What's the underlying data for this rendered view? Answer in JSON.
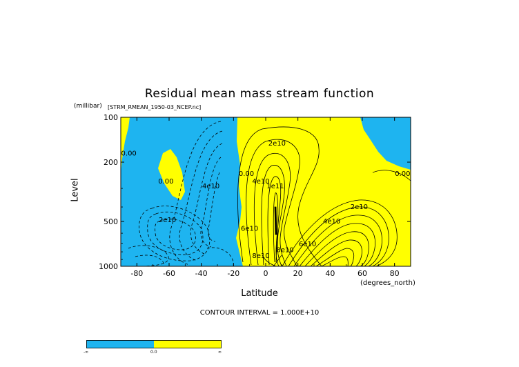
{
  "chart_data": {
    "type": "heatmap",
    "title": "Residual mean mass stream function",
    "subtitle": "[STRM_RMEAN_1950-03_NCEP.nc]",
    "ylabel": "Level",
    "yunits": "(millibar)",
    "xlabel": "Latitude",
    "xunits": "(degrees_north)",
    "y_scale": "log",
    "xlim": [
      -90,
      90
    ],
    "ylim": [
      1000,
      100
    ],
    "x_ticks": [
      "-80",
      "-60",
      "-40",
      "-20",
      "0",
      "20",
      "40",
      "60",
      "80"
    ],
    "x_tick_values": [
      -80,
      -60,
      -40,
      -20,
      0,
      20,
      40,
      60,
      80
    ],
    "y_ticks": [
      "100",
      "200",
      "500",
      "1000"
    ],
    "y_tick_values": [
      100,
      200,
      500,
      1000
    ],
    "contour_interval_text": "CONTOUR INTERVAL = 1.000E+10",
    "fill_colors": {
      "negative": "#1EB4F0",
      "positive": "#FFFF00"
    },
    "contour_labels": [
      {
        "text": "0.00",
        "lon": -85,
        "p": 175
      },
      {
        "text": "0.00",
        "lon": -62,
        "p": 270
      },
      {
        "text": "4e10",
        "lon": -34,
        "p": 290
      },
      {
        "text": "2e10",
        "lon": -61,
        "p": 490
      },
      {
        "text": "0.00",
        "lon": -12,
        "p": 240
      },
      {
        "text": "2e10",
        "lon": 7,
        "p": 150
      },
      {
        "text": "4e10",
        "lon": -3,
        "p": 270
      },
      {
        "text": "1e11",
        "lon": 6,
        "p": 290
      },
      {
        "text": "6e10",
        "lon": -10,
        "p": 560
      },
      {
        "text": "8e10",
        "lon": -3,
        "p": 850
      },
      {
        "text": "8e10",
        "lon": 12,
        "p": 780
      },
      {
        "text": "6e10",
        "lon": 26,
        "p": 710
      },
      {
        "text": "4e10",
        "lon": 41,
        "p": 500
      },
      {
        "text": "2e10",
        "lon": 58,
        "p": 400
      },
      {
        "text": "0.00",
        "lon": 85,
        "p": 240
      }
    ]
  },
  "legend": {
    "labels": [
      "-∞",
      "0.0",
      "∞"
    ]
  }
}
